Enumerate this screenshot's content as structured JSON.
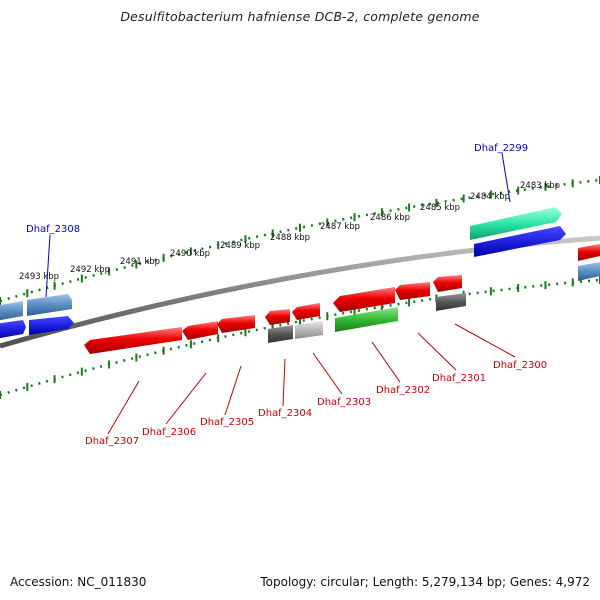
{
  "title": "Desulfitobacterium hafniense DCB-2, complete genome",
  "footer": {
    "accession": "Accession: NC_011830",
    "info": "Topology: circular; Length: 5,279,134 bp; Genes: 4,972"
  },
  "colors": {
    "forward_cds": "#5a8ec2",
    "forward_strand": "#1f1fe0",
    "forward_rna": "#2ee6a8",
    "reverse_cds": "#e80000",
    "reverse_green": "#33bb33",
    "reverse_gray": "#555555",
    "reverse_lightgray": "#b8b8b8",
    "backbone": "#808080",
    "ticks": "#1a7a1a",
    "label_forward": "#0000cc",
    "label_reverse": "#cc0000"
  },
  "kbp_labels": [
    "2493 kbp",
    "2492 kbp",
    "2491 kbp",
    "2490 kbp",
    "2489 kbp",
    "2488 kbp",
    "2487 kbp",
    "2486 kbp",
    "2485 kbp",
    "2484 kbp",
    "2483 kbp"
  ],
  "forward_labels": [
    "Dhaf_2308",
    "Dhaf_2299"
  ],
  "reverse_labels": [
    "Dhaf_2307",
    "Dhaf_2306",
    "Dhaf_2305",
    "Dhaf_2304",
    "Dhaf_2303",
    "Dhaf_2302",
    "Dhaf_2301",
    "Dhaf_2300"
  ]
}
